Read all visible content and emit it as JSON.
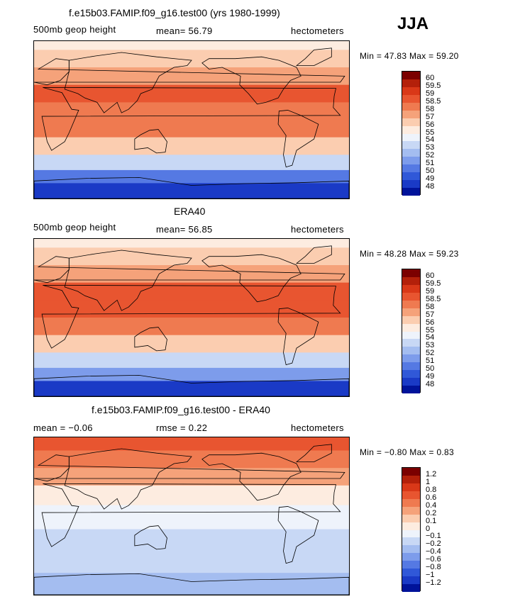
{
  "season": "JJA",
  "panels": [
    {
      "title": "f.e15b03.FAMIP.f09_g16.test00 (yrs 1980-1999)",
      "left_label": "500mb geop height",
      "stat_text": "mean=  56.79",
      "units": "hectometers",
      "minmax": "Min =  47.83  Max =  59.20",
      "ticks": [
        "60",
        "59.5",
        "59",
        "58.5",
        "58",
        "57",
        "56",
        "55",
        "54",
        "53",
        "52",
        "51",
        "50",
        "49",
        "48"
      ]
    },
    {
      "title": "ERA40",
      "left_label": "500mb geop height",
      "stat_text": "mean=  56.85",
      "units": "hectometers",
      "minmax": "Min =  48.28  Max =  59.23",
      "ticks": [
        "60",
        "59.5",
        "59",
        "58.5",
        "58",
        "57",
        "56",
        "55",
        "54",
        "53",
        "52",
        "51",
        "50",
        "49",
        "48"
      ]
    },
    {
      "title": "f.e15b03.FAMIP.f09_g16.test00 - ERA40",
      "left_label": "mean =   −0.06",
      "stat_text": "rmse =    0.22",
      "units": "hectometers",
      "minmax": "Min =  −0.80  Max =    0.83",
      "ticks": [
        "1.2",
        "1",
        "0.8",
        "0.6",
        "0.4",
        "0.2",
        "0.1",
        "0",
        "−0.1",
        "−0.2",
        "−0.4",
        "−0.6",
        "−0.8",
        "−1",
        "−1.2"
      ]
    }
  ],
  "colors": {
    "scale": [
      "#7b0000",
      "#b3200a",
      "#d93818",
      "#e85530",
      "#ef7a50",
      "#f5a27a",
      "#fbcdb0",
      "#fdece0",
      "#eef3fb",
      "#c8d8f5",
      "#a4bdf0",
      "#7d9ceb",
      "#5579e3",
      "#3058d8",
      "#1a3ac6",
      "#00139a"
    ]
  },
  "chart_data": [
    {
      "type": "heatmap",
      "title": "f.e15b03.FAMIP.f09_g16.test00 (yrs 1980-1999)",
      "variable": "500mb geop height",
      "units": "hectometers",
      "mean": 56.79,
      "min": 47.83,
      "max": 59.2,
      "contour_levels": [
        48,
        49,
        50,
        51,
        52,
        53,
        54,
        55,
        56,
        57,
        58,
        58.5,
        59,
        59.5,
        60
      ],
      "zonal_bands_value_by_latitude": [
        {
          "lat": 90,
          "value": 55.5
        },
        {
          "lat": 70,
          "value": 56.0
        },
        {
          "lat": 50,
          "value": 57.3
        },
        {
          "lat": 30,
          "value": 58.6
        },
        {
          "lat": 10,
          "value": 58.4
        },
        {
          "lat": -10,
          "value": 58.0
        },
        {
          "lat": -30,
          "value": 56.5
        },
        {
          "lat": -50,
          "value": 53.2
        },
        {
          "lat": -65,
          "value": 50.8
        },
        {
          "lat": -80,
          "value": 48.5
        }
      ]
    },
    {
      "type": "heatmap",
      "title": "ERA40",
      "variable": "500mb geop height",
      "units": "hectometers",
      "mean": 56.85,
      "min": 48.28,
      "max": 59.23,
      "contour_levels": [
        48,
        49,
        50,
        51,
        52,
        53,
        54,
        55,
        56,
        57,
        58,
        58.5,
        59,
        59.5,
        60
      ],
      "zonal_bands_value_by_latitude": [
        {
          "lat": 90,
          "value": 55.3
        },
        {
          "lat": 70,
          "value": 56.0
        },
        {
          "lat": 50,
          "value": 57.3
        },
        {
          "lat": 30,
          "value": 58.7
        },
        {
          "lat": 10,
          "value": 58.5
        },
        {
          "lat": -10,
          "value": 58.1
        },
        {
          "lat": -30,
          "value": 56.6
        },
        {
          "lat": -50,
          "value": 53.5
        },
        {
          "lat": -65,
          "value": 51.0
        },
        {
          "lat": -80,
          "value": 48.8
        }
      ]
    },
    {
      "type": "heatmap",
      "title": "f.e15b03.FAMIP.f09_g16.test00 - ERA40",
      "units": "hectometers",
      "mean": -0.06,
      "rmse": 0.22,
      "min": -0.8,
      "max": 0.83,
      "contour_levels": [
        -1.2,
        -1,
        -0.8,
        -0.6,
        -0.4,
        -0.2,
        -0.1,
        0,
        0.1,
        0.2,
        0.4,
        0.6,
        0.8,
        1,
        1.2
      ],
      "zonal_bands_value_by_latitude": [
        {
          "lat": 85,
          "value": 0.6
        },
        {
          "lat": 65,
          "value": 0.4
        },
        {
          "lat": 45,
          "value": 0.2
        },
        {
          "lat": 25,
          "value": 0.0
        },
        {
          "lat": 0,
          "value": -0.1
        },
        {
          "lat": -30,
          "value": -0.2
        },
        {
          "lat": -55,
          "value": -0.2
        },
        {
          "lat": -75,
          "value": -0.4
        }
      ]
    }
  ]
}
